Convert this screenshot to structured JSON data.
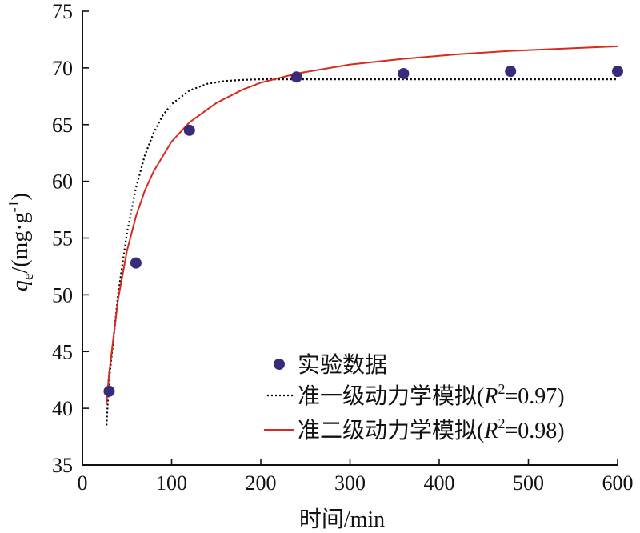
{
  "chart_data": {
    "type": "scatter",
    "title": "",
    "xlabel": "时间/min",
    "ylabel": "q_e/(mg·g^-1)",
    "ylabel_parts": {
      "q": "q",
      "e": "e",
      "unit": "/(mg·g",
      "exp": "-1",
      "close": ")"
    },
    "xlim": [
      0,
      600
    ],
    "ylim": [
      35,
      75
    ],
    "xticks": [
      0,
      100,
      200,
      300,
      400,
      500,
      600
    ],
    "yticks": [
      35,
      40,
      45,
      50,
      55,
      60,
      65,
      70,
      75
    ],
    "grid": false,
    "legend_position": "bottom-right",
    "series": [
      {
        "name": "实验数据",
        "kind": "markers",
        "color": "#3a2a7a",
        "x": [
          30,
          60,
          120,
          240,
          360,
          480,
          600
        ],
        "y": [
          41.5,
          52.8,
          64.5,
          69.2,
          69.5,
          69.7,
          69.7
        ]
      },
      {
        "name": "准一级动力学模拟(R²=0.97)",
        "legend_parts": {
          "prefix": "准一级动力学模拟(",
          "R": "R",
          "sup": "2",
          "suffix": "=0.97)"
        },
        "kind": "dotted-line",
        "color": "#000000",
        "x": [
          27,
          30,
          40,
          50,
          60,
          70,
          80,
          90,
          100,
          120,
          140,
          160,
          180,
          200,
          240,
          300,
          360,
          420,
          480,
          540,
          600
        ],
        "y": [
          38.5,
          42.5,
          50.0,
          55.5,
          59.4,
          62.3,
          64.3,
          65.8,
          66.8,
          68.0,
          68.6,
          68.85,
          68.95,
          69.0,
          69.0,
          69.0,
          69.0,
          69.0,
          69.0,
          69.0,
          69.0
        ]
      },
      {
        "name": "准二级动力学模拟(R²=0.98)",
        "legend_parts": {
          "prefix": "准二级动力学模拟(",
          "R": "R",
          "sup": "2",
          "suffix": "=0.98)"
        },
        "kind": "line",
        "color": "#d62a1e",
        "x": [
          27,
          30,
          40,
          50,
          60,
          70,
          80,
          100,
          120,
          150,
          180,
          200,
          240,
          300,
          360,
          420,
          480,
          540,
          600
        ],
        "y": [
          40.4,
          43.1,
          49.6,
          53.9,
          56.9,
          59.2,
          60.9,
          63.5,
          65.2,
          66.9,
          68.1,
          68.7,
          69.5,
          70.3,
          70.8,
          71.2,
          71.5,
          71.7,
          71.9
        ]
      }
    ]
  }
}
